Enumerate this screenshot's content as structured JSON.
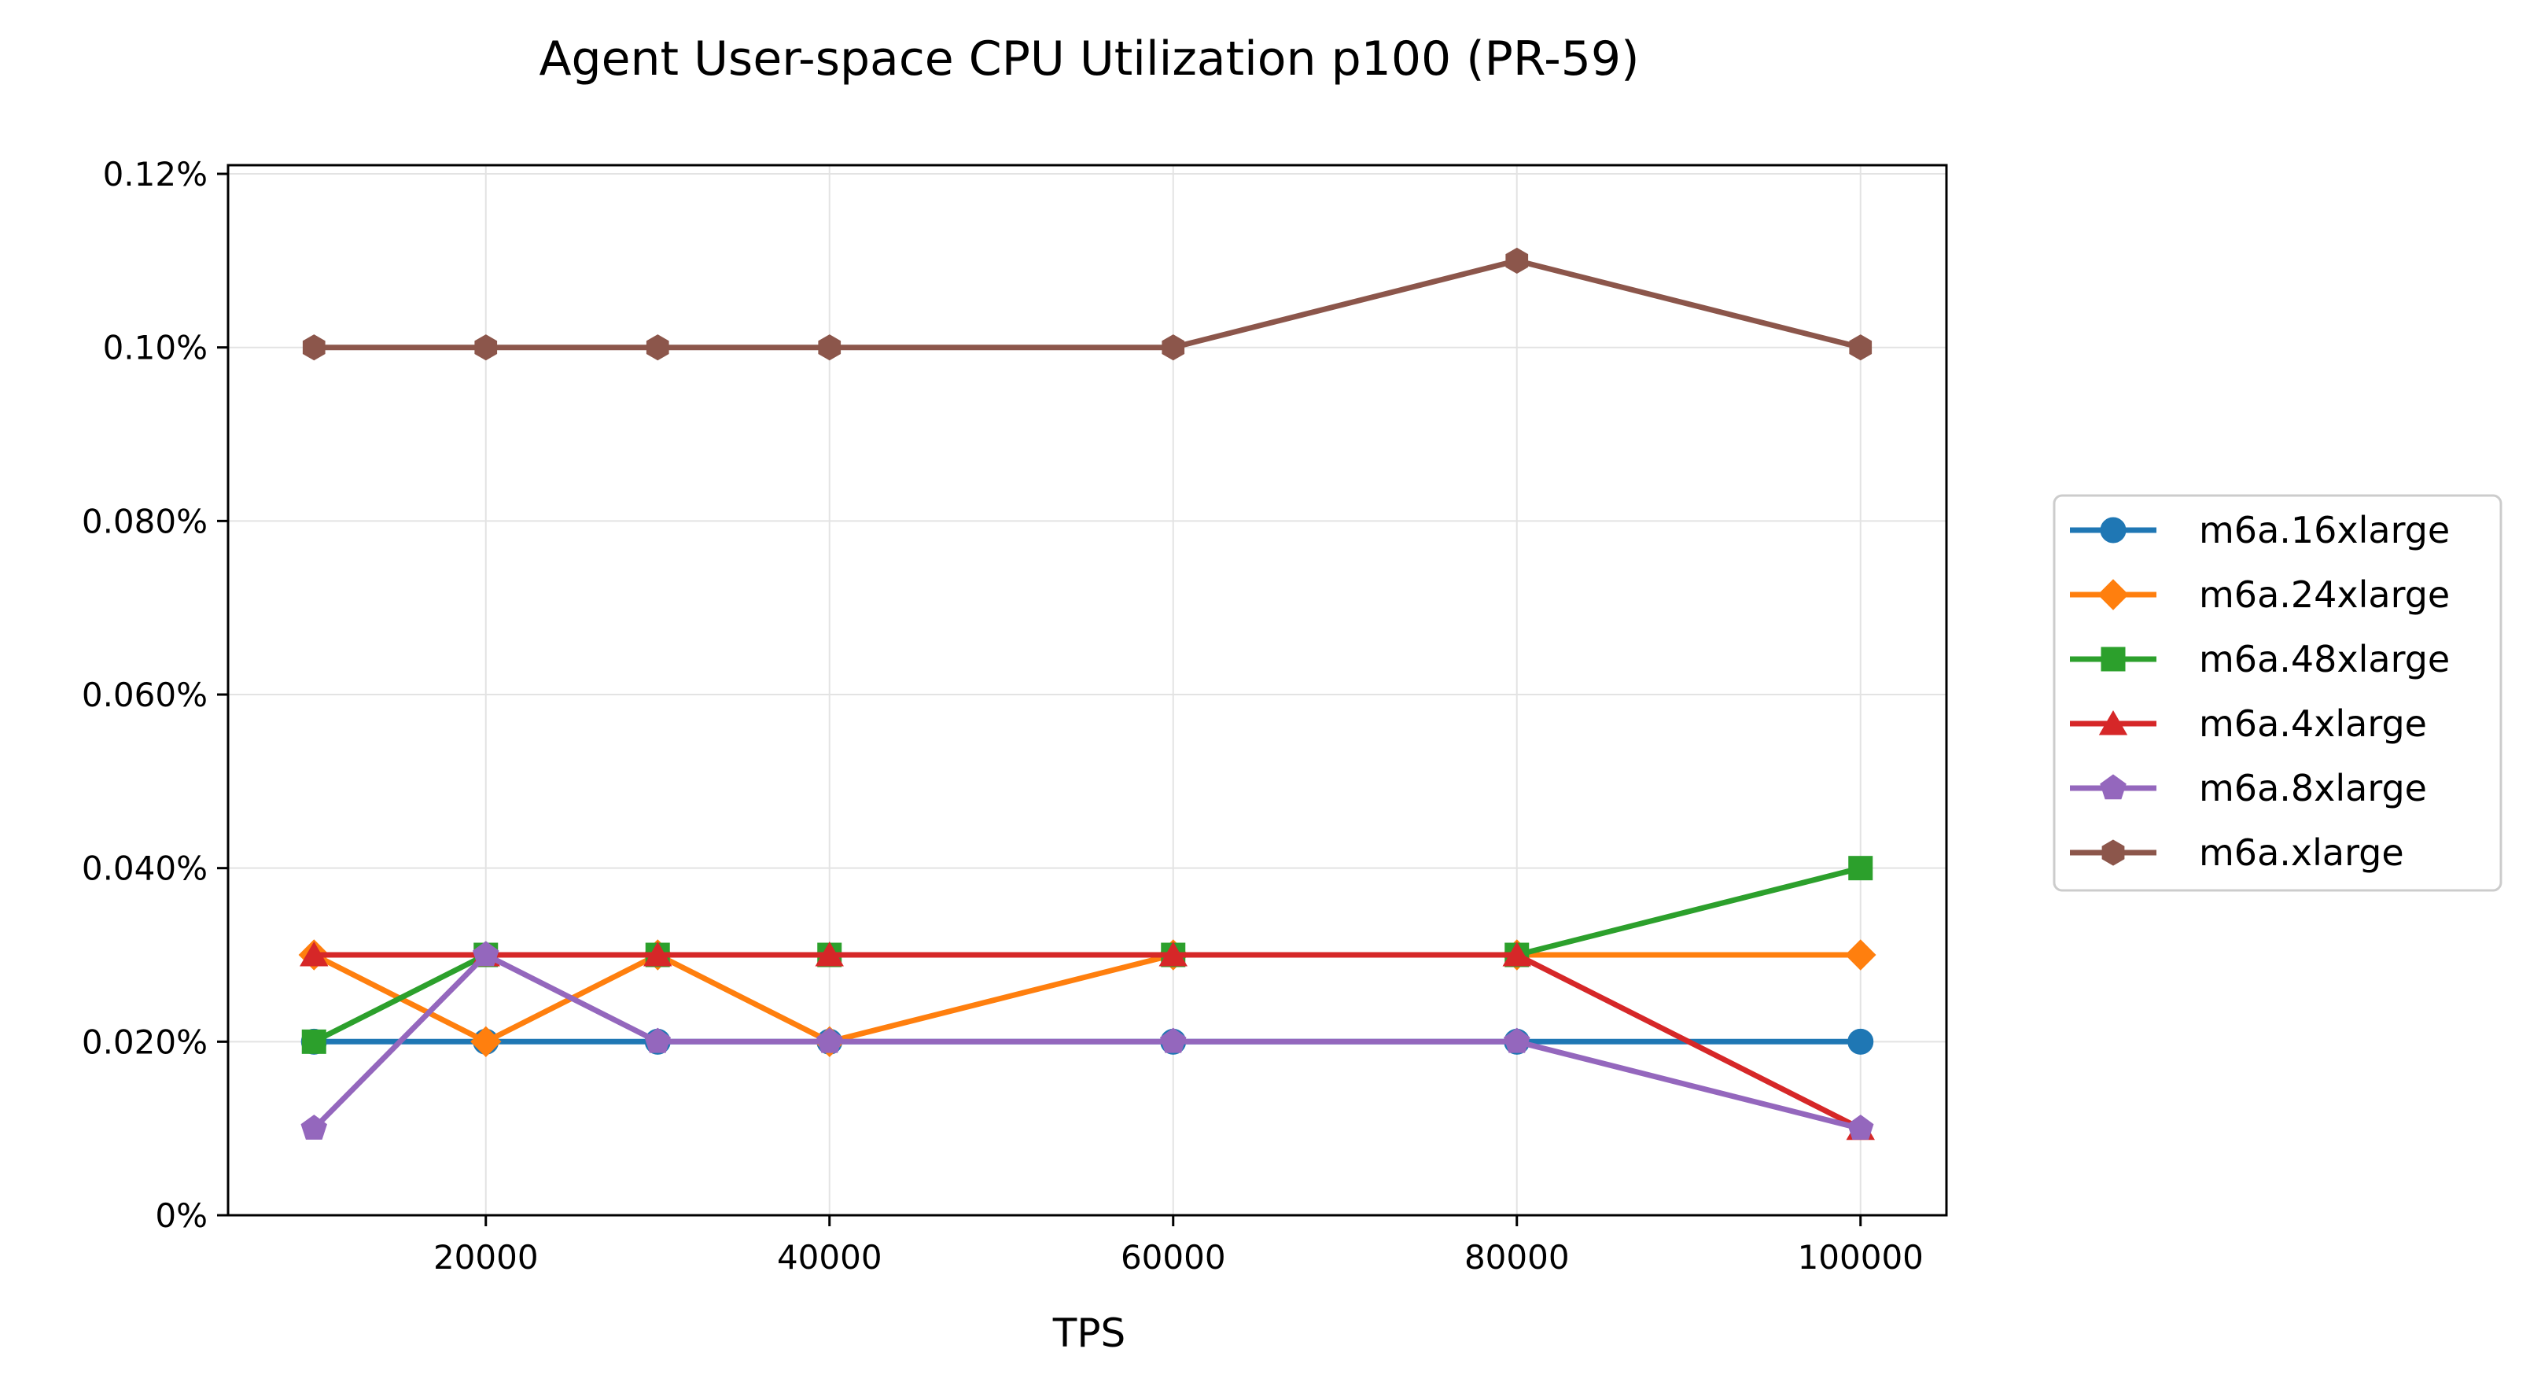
{
  "chart_data": {
    "type": "line",
    "title": "Agent User-space CPU Utilization p100 (PR-59)",
    "xlabel": "TPS",
    "ylabel": "",
    "x": [
      10000,
      20000,
      30000,
      40000,
      60000,
      80000,
      100000
    ],
    "xticks": [
      20000,
      40000,
      60000,
      80000,
      100000
    ],
    "xtick_labels": [
      "20000",
      "40000",
      "60000",
      "80000",
      "100000"
    ],
    "xlim": [
      5000,
      105000
    ],
    "ylim": [
      0,
      0.00121
    ],
    "yticks": [
      0,
      0.0002,
      0.0004,
      0.0006,
      0.0008,
      0.001,
      0.0012
    ],
    "ytick_labels": [
      "0%",
      "0.020%",
      "0.040%",
      "0.060%",
      "0.080%",
      "0.10%",
      "0.12%"
    ],
    "grid": true,
    "legend_position": "right-outside",
    "series": [
      {
        "name": "m6a.16xlarge",
        "color": "#1f77b4",
        "marker": "circle",
        "values": [
          0.0002,
          0.0002,
          0.0002,
          0.0002,
          0.0002,
          0.0002,
          0.0002
        ]
      },
      {
        "name": "m6a.24xlarge",
        "color": "#ff7f0e",
        "marker": "diamond",
        "values": [
          0.0003,
          0.0002,
          0.0003,
          0.0002,
          0.0003,
          0.0003,
          0.0003
        ]
      },
      {
        "name": "m6a.48xlarge",
        "color": "#2ca02c",
        "marker": "square",
        "values": [
          0.0002,
          0.0003,
          0.0003,
          0.0003,
          0.0003,
          0.0003,
          0.0004
        ]
      },
      {
        "name": "m6a.4xlarge",
        "color": "#d62728",
        "marker": "triangle",
        "values": [
          0.0003,
          0.0003,
          0.0003,
          0.0003,
          0.0003,
          0.0003,
          0.0001
        ]
      },
      {
        "name": "m6a.8xlarge",
        "color": "#9467bd",
        "marker": "pentagon",
        "values": [
          0.0001,
          0.0003,
          0.0002,
          0.0002,
          0.0002,
          0.0002,
          0.0001
        ]
      },
      {
        "name": "m6a.xlarge",
        "color": "#8c564b",
        "marker": "hexagon",
        "values": [
          0.001,
          0.001,
          0.001,
          0.001,
          0.001,
          0.0011,
          0.001
        ]
      }
    ]
  }
}
